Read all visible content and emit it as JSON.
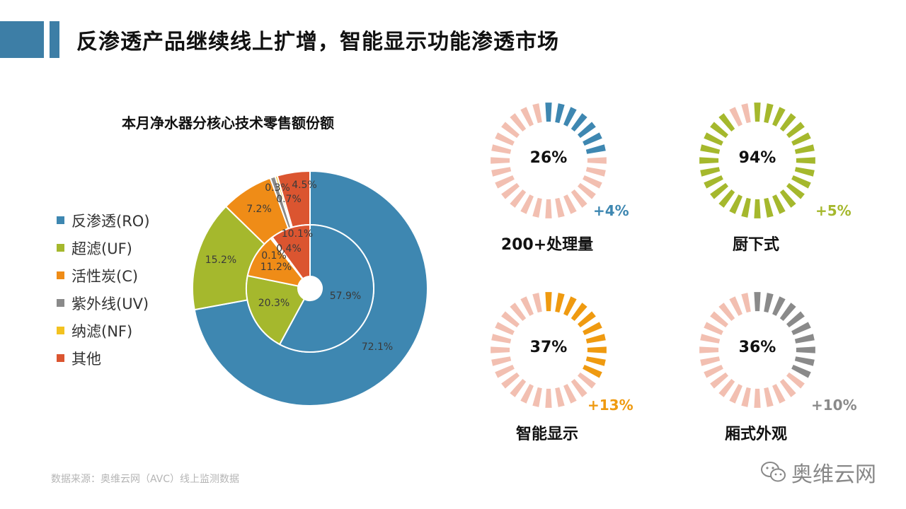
{
  "header": {
    "title": "反渗透产品继续线上扩增，智能显示功能渗透市场"
  },
  "chart_data": [
    {
      "type": "donut",
      "title": "本月净水器分核心技术零售额份额",
      "legend": [
        "反渗透(RO)",
        "超滤(UF)",
        "活性炭(C)",
        "紫外线(UV)",
        "纳滤(NF)",
        "其他"
      ],
      "colors": [
        "#3e87b1",
        "#a5b82d",
        "#ef8c17",
        "#8a8a8a",
        "#f3c220",
        "#db5530"
      ],
      "series": [
        {
          "name": "outer",
          "values": [
            72.1,
            15.2,
            7.2,
            0.7,
            0.3,
            4.5
          ],
          "labels": [
            "72.1%",
            "15.2%",
            "7.2%",
            "0.7%",
            "0.3%",
            "4.5%"
          ]
        },
        {
          "name": "inner",
          "values": [
            57.9,
            20.3,
            11.2,
            0.1,
            0.4,
            10.1
          ],
          "labels": [
            "57.9%",
            "20.3%",
            "11.2%",
            "0.1%",
            "0.4%",
            "10.1%"
          ]
        }
      ]
    },
    {
      "type": "radial-gauge",
      "items": [
        {
          "percent": 26,
          "percent_label": "26%",
          "delta": "+4%",
          "label": "200+处理量",
          "color": "#3e87b1"
        },
        {
          "percent": 94,
          "percent_label": "94%",
          "delta": "+5%",
          "label": "厨下式",
          "color": "#a5b82d"
        },
        {
          "percent": 37,
          "percent_label": "37%",
          "delta": "+13%",
          "label": "智能显示",
          "color": "#ef9a10"
        },
        {
          "percent": 36,
          "percent_label": "36%",
          "delta": "+10%",
          "label": "厢式外观",
          "color": "#8a8a8a"
        }
      ],
      "inactive_color": "#f2bfb1"
    }
  ],
  "footer": {
    "source": "数据来源：奥维云网（AVC）线上监测数据",
    "brand": "奥维云网"
  }
}
